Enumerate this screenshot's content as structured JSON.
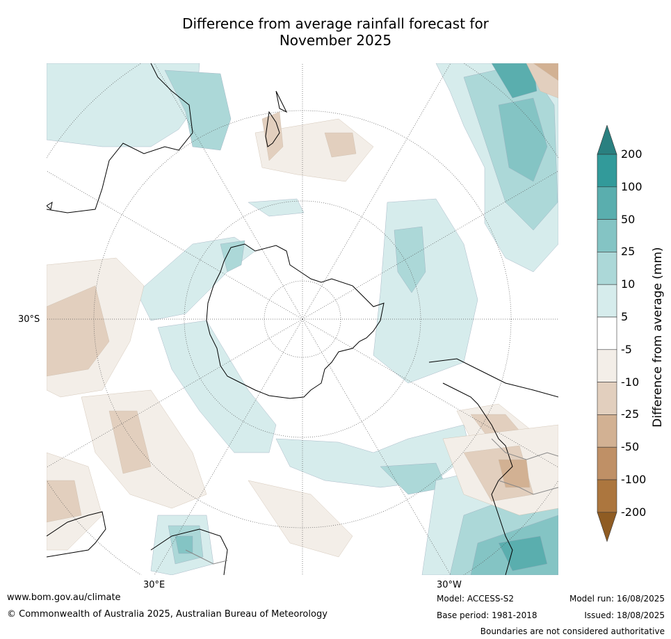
{
  "title_line1": "Difference from average rainfall forecast for",
  "title_line2": "November 2025",
  "map_labels": {
    "lat_30s": "30°S",
    "lon_30e": "30°E",
    "lon_30w": "30°W"
  },
  "colorbar": {
    "title": "Difference from average (mm)",
    "levels": [
      "200",
      "100",
      "50",
      "25",
      "10",
      "5",
      "-5",
      "-10",
      "-25",
      "-50",
      "-100",
      "-200"
    ],
    "colors": [
      "#2a8080",
      "#329a9a",
      "#5aaeae",
      "#84c4c4",
      "#acd8d8",
      "#d6ecec",
      "#ffffff",
      "#f3eee8",
      "#e2cfbe",
      "#d2b193",
      "#bf9066",
      "#ac763e",
      "#8f5c23"
    ]
  },
  "footer": {
    "website": "www.bom.gov.au/climate",
    "copyright": "© Commonwealth of Australia 2025, Australian Bureau of Meteorology",
    "model": "Model: ACCESS-S2",
    "base_period": "Base period: 1981-2018",
    "model_run": "Model run: 16/08/2025",
    "issued": "Issued: 18/08/2025",
    "disclaimer": "Boundaries are not considered authoritative"
  }
}
